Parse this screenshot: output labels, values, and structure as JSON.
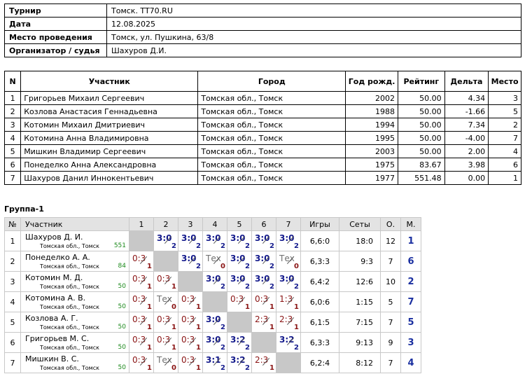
{
  "info": [
    {
      "label": "Турнир",
      "value": "Томск. TT70.RU"
    },
    {
      "label": "Дата",
      "value": "12.08.2025"
    },
    {
      "label": "Место проведения",
      "value": "Томск, ул. Пушкина, 63/8"
    },
    {
      "label": "Организатор / судья",
      "value": "Шахуров Д.И."
    }
  ],
  "participants": {
    "headers": [
      "N",
      "Участник",
      "Город",
      "Год рожд.",
      "Рейтинг",
      "Дельта",
      "Место"
    ],
    "rows": [
      [
        "1",
        "Григорьев Михаил Сергеевич",
        "Томская обл., Томск",
        "2002",
        "50.00",
        "4.34",
        "3"
      ],
      [
        "2",
        "Козлова Анастасия Геннадьевна",
        "Томская обл., Томск",
        "1988",
        "50.00",
        "-1.66",
        "5"
      ],
      [
        "3",
        "Котомин Михаил Дмитриевич",
        "Томская обл., Томск",
        "1994",
        "50.00",
        "7.34",
        "2"
      ],
      [
        "4",
        "Котомина Анна Владимировна",
        "Томская обл., Томск",
        "1995",
        "50.00",
        "-4.00",
        "7"
      ],
      [
        "5",
        "Мишкин Владимир Сергеевич",
        "Томская обл., Томск",
        "2003",
        "50.00",
        "2.00",
        "4"
      ],
      [
        "6",
        "Понеделко Анна Александровна",
        "Томская обл., Томск",
        "1975",
        "83.67",
        "3.98",
        "6"
      ],
      [
        "7",
        "Шахуров Данил Иннокентьевич",
        "Томская обл., Томск",
        "1977",
        "551.48",
        "0.00",
        "1"
      ]
    ]
  },
  "group": {
    "title": "Группа-1",
    "headers": [
      "№",
      "Участник",
      "1",
      "2",
      "3",
      "4",
      "5",
      "6",
      "7",
      "Игры",
      "Сеты",
      "О.",
      "М."
    ],
    "rows": [
      {
        "n": "1",
        "name": "Шахуров Д. И.",
        "city": "Томская обл., Томск",
        "rating": "551",
        "results": [
          null,
          {
            "s": "3:0",
            "p": "2",
            "r": "w"
          },
          {
            "s": "3:0",
            "p": "2",
            "r": "w"
          },
          {
            "s": "3:0",
            "p": "2",
            "r": "w"
          },
          {
            "s": "3:0",
            "p": "2",
            "r": "w"
          },
          {
            "s": "3:0",
            "p": "2",
            "r": "w"
          },
          {
            "s": "3:0",
            "p": "2",
            "r": "w"
          }
        ],
        "games": "6,6:0",
        "sets": "18:0",
        "points": "12",
        "place": "1"
      },
      {
        "n": "2",
        "name": "Понеделко А. А.",
        "city": "Томская обл., Томск",
        "rating": "84",
        "results": [
          {
            "s": "0:3",
            "p": "1",
            "r": "l"
          },
          null,
          {
            "s": "3:0",
            "p": "2",
            "r": "w"
          },
          {
            "s": "Тех",
            "p": "0",
            "r": "t"
          },
          {
            "s": "3:0",
            "p": "2",
            "r": "w"
          },
          {
            "s": "3:0",
            "p": "2",
            "r": "w"
          },
          {
            "s": "Тех",
            "p": "0",
            "r": "t"
          }
        ],
        "games": "6,3:3",
        "sets": "9:3",
        "points": "7",
        "place": "6"
      },
      {
        "n": "3",
        "name": "Котомин М. Д.",
        "city": "Томская обл., Томск",
        "rating": "50",
        "results": [
          {
            "s": "0:3",
            "p": "1",
            "r": "l"
          },
          {
            "s": "0:3",
            "p": "1",
            "r": "l"
          },
          null,
          {
            "s": "3:0",
            "p": "2",
            "r": "w"
          },
          {
            "s": "3:0",
            "p": "2",
            "r": "w"
          },
          {
            "s": "3:0",
            "p": "2",
            "r": "w"
          },
          {
            "s": "3:0",
            "p": "2",
            "r": "w"
          }
        ],
        "games": "6,4:2",
        "sets": "12:6",
        "points": "10",
        "place": "2"
      },
      {
        "n": "4",
        "name": "Котомина А. В.",
        "city": "Томская обл., Томск",
        "rating": "50",
        "results": [
          {
            "s": "0:3",
            "p": "1",
            "r": "l"
          },
          {
            "s": "Тех",
            "p": "0",
            "r": "t"
          },
          {
            "s": "0:3",
            "p": "1",
            "r": "l"
          },
          null,
          {
            "s": "0:3",
            "p": "1",
            "r": "l"
          },
          {
            "s": "0:3",
            "p": "1",
            "r": "l"
          },
          {
            "s": "1:3",
            "p": "1",
            "r": "l"
          }
        ],
        "games": "6,0:6",
        "sets": "1:15",
        "points": "5",
        "place": "7"
      },
      {
        "n": "5",
        "name": "Козлова А. Г.",
        "city": "Томская обл., Томск",
        "rating": "50",
        "results": [
          {
            "s": "0:3",
            "p": "1",
            "r": "l"
          },
          {
            "s": "0:3",
            "p": "1",
            "r": "l"
          },
          {
            "s": "0:3",
            "p": "1",
            "r": "l"
          },
          {
            "s": "3:0",
            "p": "2",
            "r": "w"
          },
          null,
          {
            "s": "2:3",
            "p": "1",
            "r": "l"
          },
          {
            "s": "2:3",
            "p": "1",
            "r": "l"
          }
        ],
        "games": "6,1:5",
        "sets": "7:15",
        "points": "7",
        "place": "5"
      },
      {
        "n": "6",
        "name": "Григорьев М. С.",
        "city": "Томская обл., Томск",
        "rating": "50",
        "results": [
          {
            "s": "0:3",
            "p": "1",
            "r": "l"
          },
          {
            "s": "0:3",
            "p": "1",
            "r": "l"
          },
          {
            "s": "0:3",
            "p": "1",
            "r": "l"
          },
          {
            "s": "3:0",
            "p": "2",
            "r": "w"
          },
          {
            "s": "3:2",
            "p": "2",
            "r": "w"
          },
          null,
          {
            "s": "3:2",
            "p": "2",
            "r": "w"
          }
        ],
        "games": "6,3:3",
        "sets": "9:13",
        "points": "9",
        "place": "3"
      },
      {
        "n": "7",
        "name": "Мишкин В. С.",
        "city": "Томская обл., Томск",
        "rating": "50",
        "results": [
          {
            "s": "0:3",
            "p": "1",
            "r": "l"
          },
          {
            "s": "Тех",
            "p": "0",
            "r": "t"
          },
          {
            "s": "0:3",
            "p": "1",
            "r": "l"
          },
          {
            "s": "3:1",
            "p": "2",
            "r": "w"
          },
          {
            "s": "3:2",
            "p": "2",
            "r": "w"
          },
          {
            "s": "2:3",
            "p": "1",
            "r": "l"
          },
          null
        ],
        "games": "6,2:4",
        "sets": "8:12",
        "points": "7",
        "place": "4"
      }
    ]
  }
}
